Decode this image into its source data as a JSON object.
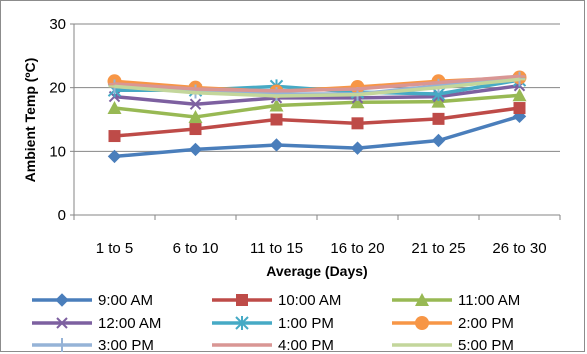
{
  "chart_data": {
    "type": "line",
    "title": "",
    "xlabel": "Average (Days)",
    "ylabel": "Ambient Temp (ºC)",
    "ylim": [
      0,
      30
    ],
    "yticks": [
      "0",
      "10",
      "20",
      "30"
    ],
    "categories": [
      "1 to 5",
      "6 to 10",
      "11 to 15",
      "16 to 20",
      "21 to 25",
      "26 to 30"
    ],
    "grid": "horizontal",
    "legend_position": "bottom",
    "series": [
      {
        "name": "9:00 AM",
        "color": "#4a7ebb",
        "marker": "diamond",
        "values": [
          9.2,
          10.3,
          11.0,
          10.5,
          11.7,
          15.5
        ]
      },
      {
        "name": "10:00 AM",
        "color": "#be4b48",
        "marker": "square",
        "values": [
          12.4,
          13.5,
          15.0,
          14.4,
          15.1,
          16.8
        ]
      },
      {
        "name": "11:00 AM",
        "color": "#98b954",
        "marker": "triangle",
        "values": [
          16.8,
          15.4,
          17.2,
          17.7,
          17.8,
          18.8
        ]
      },
      {
        "name": "12:00 AM",
        "color": "#7d60a0",
        "marker": "x",
        "values": [
          18.6,
          17.4,
          18.4,
          18.4,
          18.6,
          20.3
        ]
      },
      {
        "name": "1:00 PM",
        "color": "#46aac5",
        "marker": "star",
        "values": [
          19.6,
          19.6,
          20.2,
          19.3,
          19.0,
          21.2
        ]
      },
      {
        "name": "2:00 PM",
        "color": "#f79646",
        "marker": "circle",
        "values": [
          21.0,
          20.0,
          19.4,
          20.1,
          21.0,
          21.6
        ]
      },
      {
        "name": "3:00 PM",
        "color": "#95b3d7",
        "marker": "plus",
        "values": [
          20.2,
          19.4,
          19.0,
          19.0,
          20.3,
          21.4
        ]
      },
      {
        "name": "4:00 PM",
        "color": "#d99694",
        "marker": "dash",
        "values": [
          20.6,
          19.8,
          19.5,
          19.8,
          20.8,
          21.8
        ]
      },
      {
        "name": "5:00 PM",
        "color": "#c3d69b",
        "marker": "dash",
        "values": [
          20.2,
          19.2,
          18.7,
          18.9,
          20.0,
          21.3
        ]
      }
    ]
  }
}
